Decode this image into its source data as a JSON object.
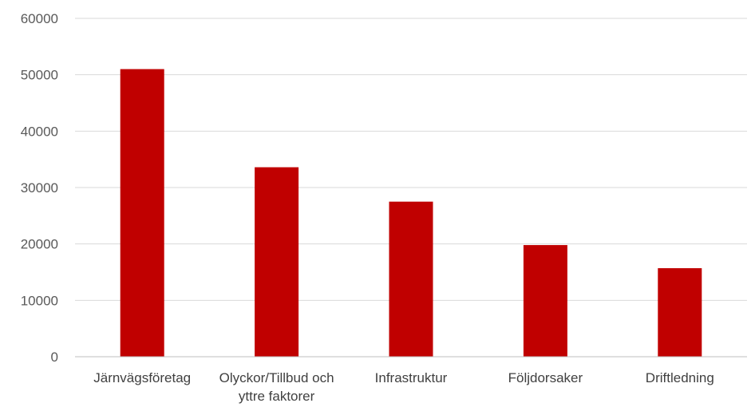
{
  "chart_data": {
    "type": "bar",
    "categories": [
      [
        "Järnvägsföretag"
      ],
      [
        "Olyckor/Tillbud och",
        "yttre faktorer"
      ],
      [
        "Infrastruktur"
      ],
      [
        "Följdorsaker"
      ],
      [
        "Driftledning"
      ]
    ],
    "values": [
      51000,
      33600,
      27500,
      19800,
      15700
    ],
    "ylim": [
      0,
      60000
    ],
    "yticks": [
      0,
      10000,
      20000,
      30000,
      40000,
      50000,
      60000
    ],
    "title": "",
    "xlabel": "",
    "ylabel": "",
    "grid": true,
    "legend": "none",
    "bar_color": "#c00000"
  }
}
